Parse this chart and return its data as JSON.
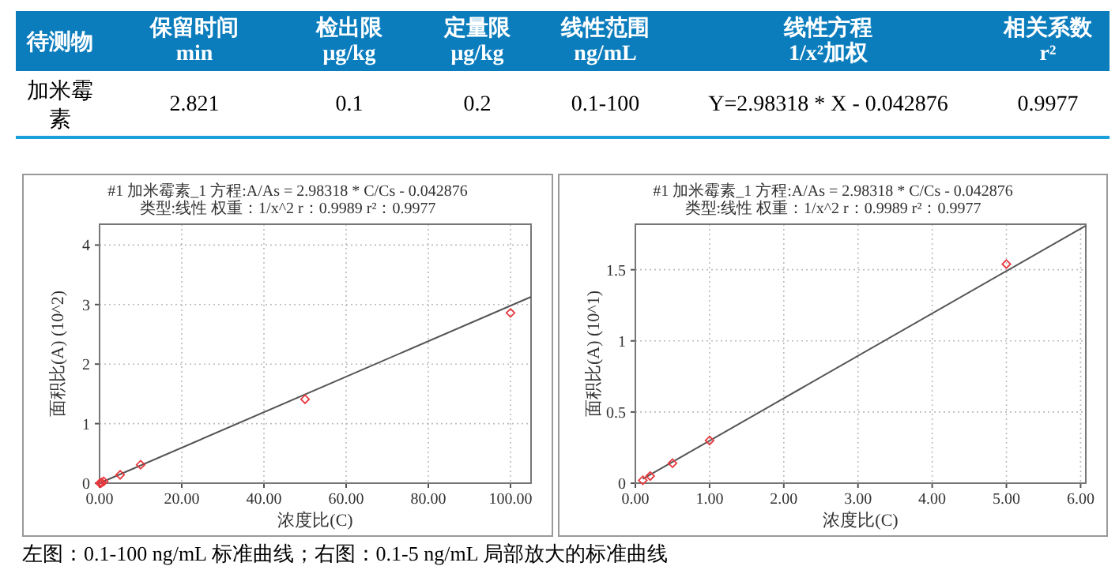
{
  "chart_data": [
    {
      "type": "other",
      "annotations": [
        "待测物",
        "保留时间\nmin",
        "检出限\nμg/kg",
        "定量限\nμg/kg",
        "线性范围\nng/mL",
        "线性方程\n1/x²加权",
        "相关系数\nr²",
        "加米霉素",
        "2.821",
        "0.1",
        "0.2",
        "0.1-100",
        "Y=2.98318 * X - 0.042876",
        "0.9977"
      ]
    },
    {
      "type": "scatter",
      "title": "#1   加米霉素_1   方程:A/As =  2.98318 * C/Cs - 0.042876",
      "subtitle": "类型:线性   权重：1/x^2   r：0.9989  r²：0.9977",
      "xlabel": "浓度比(C)",
      "ylabel": "面积比(A) (10^2)",
      "xlim": [
        0,
        105
      ],
      "ylim": [
        0,
        4.35
      ],
      "xticks": [
        {
          "value": 0,
          "label": "0.00"
        },
        {
          "value": 20,
          "label": "20.00"
        },
        {
          "value": 40,
          "label": "40.00"
        },
        {
          "value": 60,
          "label": "60.00"
        },
        {
          "value": 80,
          "label": "80.00"
        },
        {
          "value": 100,
          "label": "100.00"
        }
      ],
      "yticks": [
        0,
        1,
        2,
        3,
        4
      ],
      "grid": true,
      "series": [
        {
          "type": "line",
          "x": [
            0.1,
            105
          ],
          "values": [
            0.003,
            3.13
          ],
          "color": "#555555",
          "marker": "none"
        },
        {
          "type": "scatter",
          "x": [
            0.1,
            0.2,
            0.5,
            1,
            5,
            10,
            50,
            100
          ],
          "values": [
            0.0,
            0.0,
            0.01,
            0.03,
            0.14,
            0.31,
            1.41,
            2.86
          ],
          "color": "#e8383d",
          "marker": "diamond"
        }
      ]
    },
    {
      "type": "scatter",
      "title": "#1   加米霉素_1   方程:A/As =  2.98318 * C/Cs - 0.042876",
      "subtitle": "类型:线性   权重：1/x^2   r：0.9989  r²：0.9977",
      "xlabel": "浓度比(C)",
      "ylabel": "面积比(A) (10^1)",
      "xlim": [
        0,
        6.07
      ],
      "ylim": [
        0,
        1.82
      ],
      "xticks": [
        {
          "value": 0,
          "label": "0.00"
        },
        {
          "value": 1,
          "label": "1.00"
        },
        {
          "value": 2,
          "label": "2.00"
        },
        {
          "value": 3,
          "label": "3.00"
        },
        {
          "value": 4,
          "label": "4.00"
        },
        {
          "value": 5,
          "label": "5.00"
        },
        {
          "value": 6,
          "label": "6.00"
        }
      ],
      "yticks": [
        0,
        0.5,
        1,
        1.5
      ],
      "grid": true,
      "series": [
        {
          "type": "line",
          "x": [
            0.1,
            6.07
          ],
          "values": [
            0.03,
            1.81
          ],
          "color": "#555555",
          "marker": "none"
        },
        {
          "type": "scatter",
          "x": [
            0.1,
            0.2,
            0.5,
            1,
            5
          ],
          "values": [
            0.02,
            0.05,
            0.14,
            0.3,
            1.54
          ],
          "color": "#e8383d",
          "marker": "diamond"
        }
      ]
    },
    {
      "type": "other",
      "annotations": [
        "左图：0.1-100 ng/mL  标准曲线；右图：0.1-5 ng/mL  局部放大的标准曲线"
      ]
    }
  ]
}
